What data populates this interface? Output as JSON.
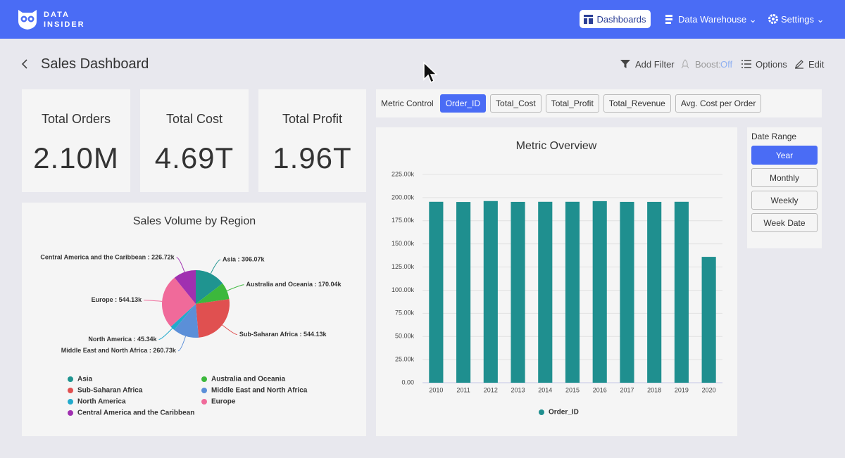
{
  "nav": {
    "brand": [
      "DATA",
      "INSIDER"
    ],
    "items": [
      "Dashboards",
      "Data Warehouse",
      "Settings"
    ]
  },
  "page": {
    "title": "Sales Dashboard",
    "actions": {
      "filter": "Add Filter",
      "boost": "Boost:",
      "boost_state": "Off",
      "options": "Options",
      "edit": "Edit"
    }
  },
  "kpis": [
    {
      "label": "Total Orders",
      "value": "2.10M"
    },
    {
      "label": "Total Cost",
      "value": "4.69T"
    },
    {
      "label": "Total Profit",
      "value": "1.96T"
    }
  ],
  "metric_control": {
    "label": "Metric Control",
    "options": [
      "Order_ID",
      "Total_Cost",
      "Total_Profit",
      "Total_Revenue",
      "Avg. Cost per Order"
    ],
    "selected": 0
  },
  "date_range": {
    "label": "Date Range",
    "options": [
      "Year",
      "Monthly",
      "Weekly",
      "Week Date"
    ],
    "selected": 0
  },
  "chart_data": [
    {
      "type": "pie",
      "title": "Sales Volume by Region",
      "categories": [
        "Asia",
        "Australia and Oceania",
        "Sub-Saharan Africa",
        "Middle East and North Africa",
        "North America",
        "Europe",
        "Central America and the Caribbean"
      ],
      "values": [
        306070,
        170040,
        544130,
        260730,
        45340,
        544130,
        226720
      ],
      "value_labels": [
        "Asia : 306.07k",
        "Australia and Oceania : 170.04k",
        "Sub-Saharan Africa : 544.13k",
        "Middle East and North Africa : 260.73k",
        "North America : 45.34k",
        "Europe : 544.13k",
        "Central America and the Caribbean : 226.72k"
      ],
      "colors": [
        "#1f9490",
        "#3cb83c",
        "#e05050",
        "#5b8fd8",
        "#22aacc",
        "#f06a9a",
        "#a030b0"
      ]
    },
    {
      "type": "bar",
      "title": "Metric Overview",
      "categories": [
        "2010",
        "2011",
        "2012",
        "2013",
        "2014",
        "2015",
        "2016",
        "2017",
        "2018",
        "2019",
        "2020"
      ],
      "series": [
        {
          "name": "Order_ID",
          "color": "#1f8f8f",
          "values": [
            195500,
            195300,
            196300,
            195400,
            195500,
            195500,
            196200,
            195400,
            195400,
            195500,
            136000
          ]
        }
      ],
      "ylim": [
        0,
        225000
      ],
      "yticks": [
        {
          "value": 0,
          "label": "0.00"
        },
        {
          "value": 25000,
          "label": "25.00k"
        },
        {
          "value": 50000,
          "label": "50.00k"
        },
        {
          "value": 75000,
          "label": "75.00k"
        },
        {
          "value": 100000,
          "label": "100.00k"
        },
        {
          "value": 125000,
          "label": "125.00k"
        },
        {
          "value": 150000,
          "label": "150.00k"
        },
        {
          "value": 175000,
          "label": "175.00k"
        },
        {
          "value": 200000,
          "label": "200.00k"
        },
        {
          "value": 225000,
          "label": "225.00k"
        }
      ],
      "grid": true
    }
  ]
}
